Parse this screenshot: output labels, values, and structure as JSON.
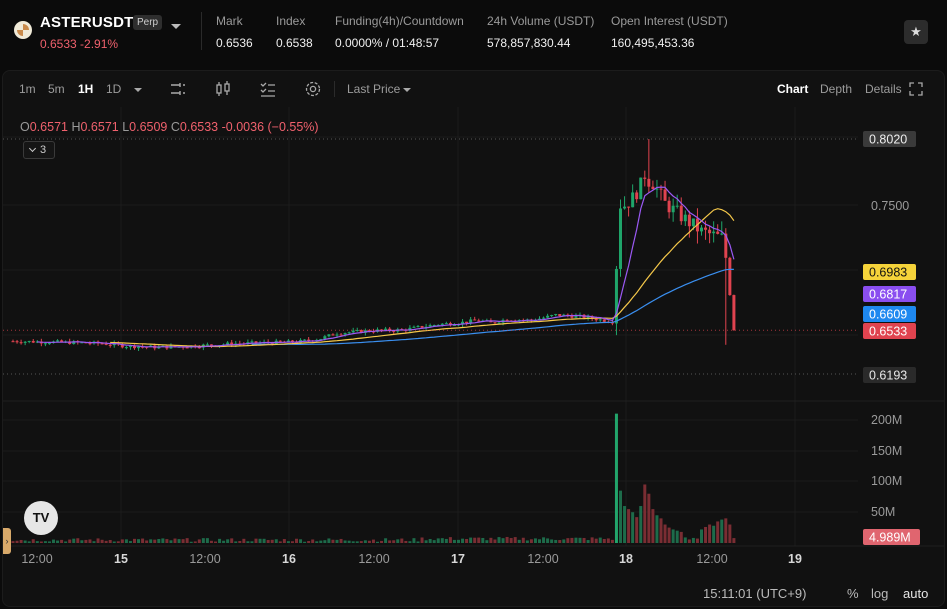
{
  "header": {
    "symbol": "ASTERUSDT",
    "badge": "Perp",
    "last_price": "0.6533",
    "change_pct": "-2.91%",
    "stats": [
      {
        "label": "Mark",
        "value": "0.6536"
      },
      {
        "label": "Index",
        "value": "0.6538"
      },
      {
        "label": "Funding(4h)/Countdown",
        "value": "0.0000% / 01:48:57"
      },
      {
        "label": "24h Volume (USDT)",
        "value": "578,857,830.44"
      },
      {
        "label": "Open Interest (USDT)",
        "value": "160,495,453.36"
      }
    ]
  },
  "toolbar": {
    "intervals": [
      "1m",
      "5m",
      "1H",
      "1D"
    ],
    "active_interval": "1H",
    "price_type": "Last Price",
    "views": [
      "Chart",
      "Depth",
      "Details"
    ],
    "active_view": "Chart",
    "icons": [
      "chart-type-icon",
      "candles-icon",
      "indicators-icon",
      "settings-icon",
      "fullscreen-icon"
    ]
  },
  "ohlc": {
    "o_label": "O",
    "o": "0.6571",
    "h_label": "H",
    "h": "0.6571",
    "l_label": "L",
    "l": "0.6509",
    "c_label": "C",
    "c": "0.6533",
    "change": "-0.0036 (−0.55%)"
  },
  "indicator_toggle": "3",
  "chart_data": {
    "type": "candlestick",
    "price_axis_labels": [
      "0.8020",
      "0.7500"
    ],
    "price_tags": [
      {
        "value": "0.6983",
        "color": "#f5d33a",
        "text_color": "#111111"
      },
      {
        "value": "0.6817",
        "color": "#8a4ef0",
        "text_color": "#ffffff"
      },
      {
        "value": "0.6609",
        "color": "#1e88f0",
        "text_color": "#ffffff"
      },
      {
        "value": "0.6533",
        "color": "#e0434f",
        "text_color": "#ffffff"
      },
      {
        "value": "0.6193",
        "color": "#2a2a2a",
        "text_color": "#e8e8e8"
      }
    ],
    "high_marker": "0.8020",
    "low_marker": "0.6193",
    "volume_axis_labels": [
      "200M",
      "150M",
      "100M",
      "50M"
    ],
    "volume_tag": "4.989M",
    "x_labels": [
      "12:00",
      "15",
      "12:00",
      "16",
      "12:00",
      "17",
      "12:00",
      "18",
      "12:00",
      "19"
    ],
    "ma_colors": {
      "short": "#9b59f5",
      "mid": "#f5c84a",
      "long": "#3a8ff0"
    },
    "up_color": "#1fa56a",
    "down_color": "#e0434f"
  },
  "footer": {
    "clock": "15:11:01 (UTC+9)",
    "percent": "%",
    "log": "log",
    "auto": "auto"
  }
}
